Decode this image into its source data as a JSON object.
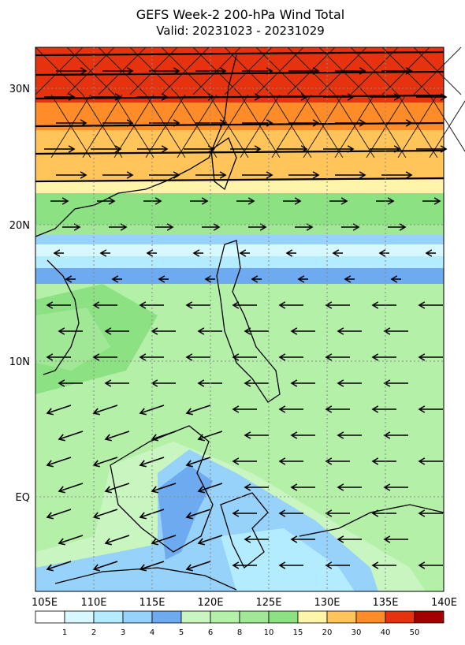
{
  "title": "GEFS Week-2 200-hPa Wind Total",
  "subtitle": "Valid: 20231023 - 20231029",
  "lat_labels": [
    "30N",
    "20N",
    "10N",
    "EQ"
  ],
  "lon_labels": [
    "105E",
    "110E",
    "115E",
    "120E",
    "125E",
    "130E",
    "135E",
    "140E"
  ],
  "colorbar": {
    "labels": [
      "1",
      "2",
      "3",
      "4",
      "5",
      "6",
      "8",
      "10",
      "15",
      "20",
      "30",
      "40",
      "50"
    ],
    "colors": [
      "#ffffff",
      "#d8f8ff",
      "#b4ecff",
      "#96d2fa",
      "#6eaaf0",
      "#c8f5c0",
      "#b4f0a8",
      "#a0e896",
      "#8ce282",
      "#fff5aa",
      "#ffc45a",
      "#ff8c28",
      "#e6320f",
      "#a50000"
    ]
  }
}
